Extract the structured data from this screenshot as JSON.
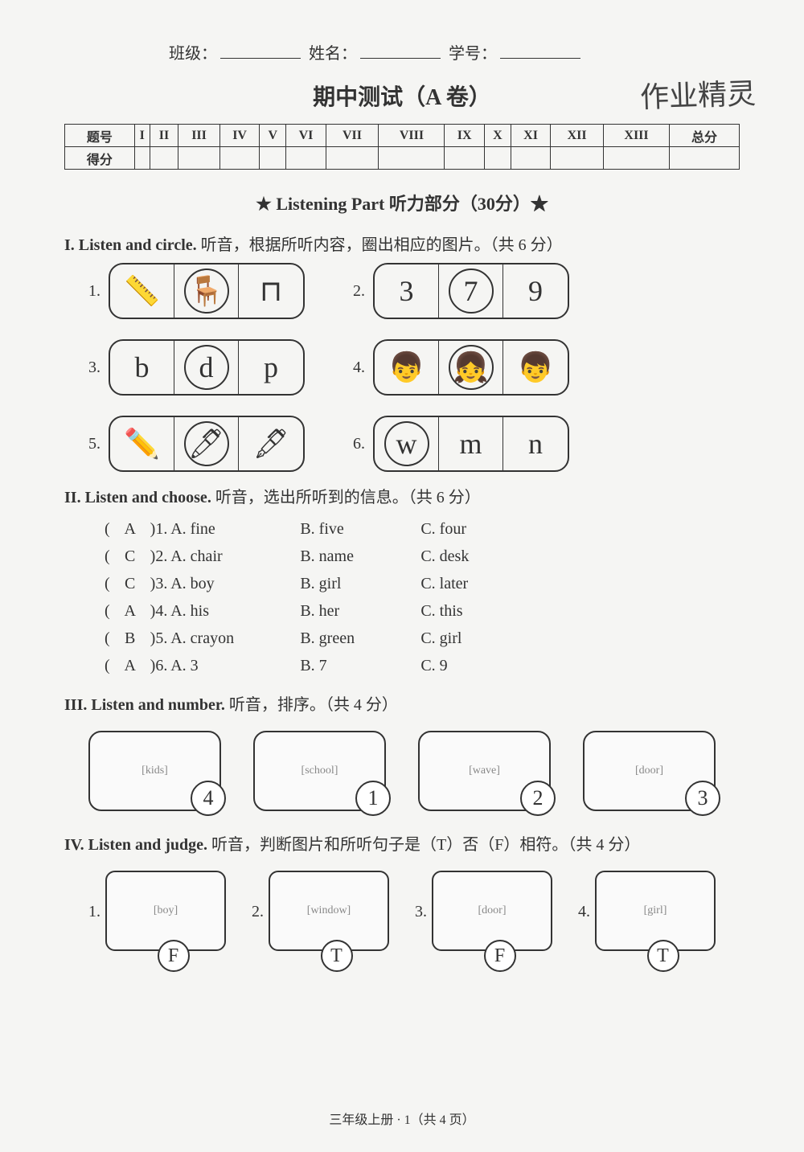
{
  "header": {
    "class_label": "班级：",
    "name_label": "姓名：",
    "id_label": "学号：",
    "handwritten_note": "作业精灵"
  },
  "title": "期中测试（A 卷）",
  "score_table": {
    "row_label": "题号",
    "score_label": "得分",
    "columns": [
      "I",
      "II",
      "III",
      "IV",
      "V",
      "VI",
      "VII",
      "VIII",
      "IX",
      "X",
      "XI",
      "XII",
      "XIII",
      "总分"
    ]
  },
  "listening_header": "★ Listening Part 听力部分（30分）★",
  "section1": {
    "title_en": "I. Listen and circle.",
    "title_cn": " 听音，根据所听内容，圈出相应的图片。（共 6 分）",
    "items": [
      {
        "num": "1.",
        "cells": [
          "📏",
          "🪑",
          "⊓"
        ],
        "circled": 1
      },
      {
        "num": "2.",
        "cells": [
          "3",
          "7",
          "9"
        ],
        "circled": 1
      },
      {
        "num": "3.",
        "cells": [
          "b",
          "d",
          "p"
        ],
        "circled": 1
      },
      {
        "num": "4.",
        "cells": [
          "👦",
          "👧",
          "👦"
        ],
        "circled": 1
      },
      {
        "num": "5.",
        "cells": [
          "✏️",
          "🖊",
          "🖋"
        ],
        "circled": 1
      },
      {
        "num": "6.",
        "cells": [
          "w",
          "m",
          "n"
        ],
        "circled": 0
      }
    ]
  },
  "section2": {
    "title_en": "II. Listen and choose.",
    "title_cn": " 听音，选出所听到的信息。（共 6 分）",
    "rows": [
      {
        "ans": "A",
        "num": "1.",
        "a": "A. fine",
        "b": "B. five",
        "c": "C. four"
      },
      {
        "ans": "C",
        "num": "2.",
        "a": "A. chair",
        "b": "B. name",
        "c": "C. desk"
      },
      {
        "ans": "C",
        "num": "3.",
        "a": "A. boy",
        "b": "B. girl",
        "c": "C. later"
      },
      {
        "ans": "A",
        "num": "4.",
        "a": "A. his",
        "b": "B. her",
        "c": "C. this"
      },
      {
        "ans": "B",
        "num": "5.",
        "a": "A. crayon",
        "b": "B. green",
        "c": "C. girl"
      },
      {
        "ans": "A",
        "num": "6.",
        "a": "A. 3",
        "b": "B. 7",
        "c": "C. 9"
      }
    ]
  },
  "section3": {
    "title_en": "III. Listen and number.",
    "title_cn": " 听音，排序。（共 4 分）",
    "answers": [
      "4",
      "1",
      "2",
      "3"
    ],
    "sketches": [
      "kids",
      "school",
      "wave",
      "door"
    ]
  },
  "section4": {
    "title_en": "IV. Listen and judge.",
    "title_cn": " 听音，判断图片和所听句子是（T）否（F）相符。（共 4 分）",
    "items": [
      {
        "num": "1.",
        "ans": "F",
        "sketch": "boy"
      },
      {
        "num": "2.",
        "ans": "T",
        "sketch": "window"
      },
      {
        "num": "3.",
        "ans": "F",
        "sketch": "door"
      },
      {
        "num": "4.",
        "ans": "T",
        "sketch": "girl"
      }
    ]
  },
  "footer": "三年级上册 · 1（共 4 页）"
}
